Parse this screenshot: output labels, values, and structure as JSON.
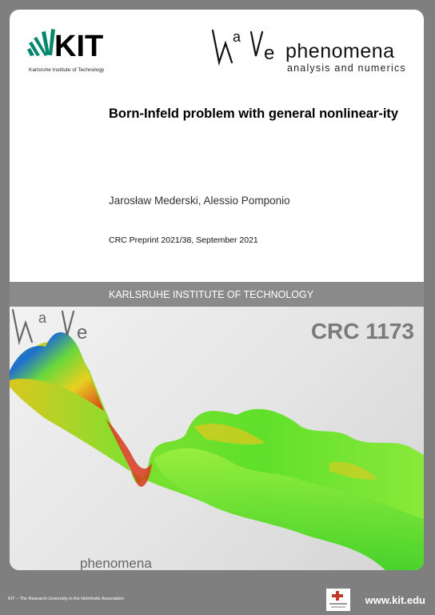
{
  "kit_logo": {
    "text": "KIT",
    "subtitle": "Karlsruhe Institute of Technology",
    "color": "#00876c"
  },
  "wave_logo": {
    "glyph_text": "Wave",
    "title": "phenomena",
    "subtitle": "analysis and numerics"
  },
  "paper": {
    "title": "Born-Infeld problem with general nonlinear-ity",
    "authors": "Jarosław Mederski, Alessio Pomponio",
    "preprint": "CRC Preprint 2021/38, September 2021"
  },
  "banner": {
    "text": "KARLSRUHE INSTITUTE OF TECHNOLOGY"
  },
  "cover": {
    "crc_label": "CRC 1173",
    "logo_title": "phenomena"
  },
  "footer": {
    "left": "KIT – The Research University in the Helmholtz Association",
    "right": "www.kit.edu"
  },
  "colors": {
    "background": "#7f7f7f",
    "banner": "#8a8a8a",
    "surface_blue": "#1f6fd0",
    "surface_green": "#5fe02a",
    "surface_red": "#d63a1a"
  }
}
